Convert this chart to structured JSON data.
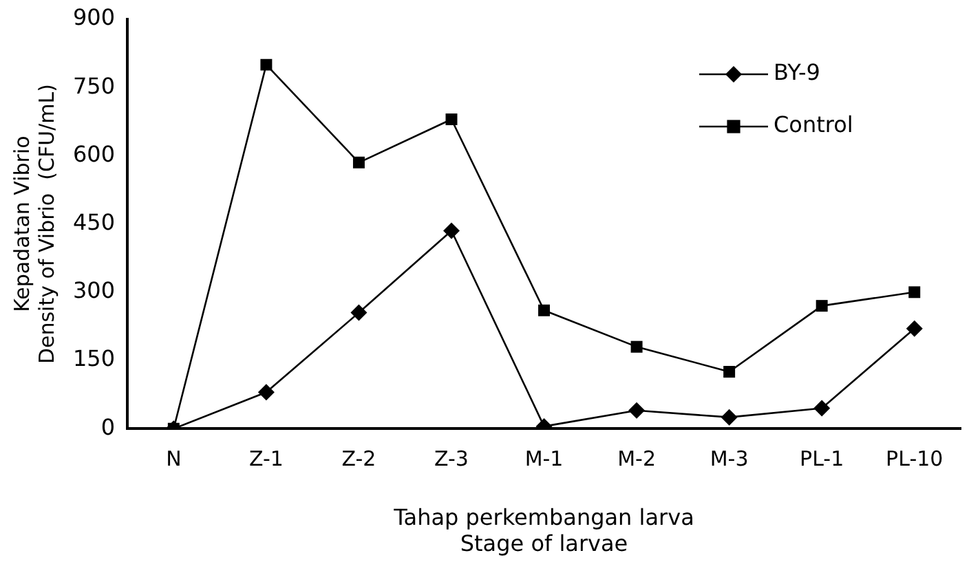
{
  "chart_data": {
    "type": "line",
    "xlabel": "Tahap perkembangan larva\nStage of larvae",
    "ylabel": "Kepadatan Vibrio\nDensity of Vibrio  (CFU/mL)",
    "categories": [
      "N",
      "Z-1",
      "Z-2",
      "Z-3",
      "M-1",
      "M-2",
      "M-3",
      "PL-1",
      "PL-10"
    ],
    "series": [
      {
        "name": "BY-9",
        "color": "#000000",
        "marker": "diamond",
        "values": [
          0,
          80,
          255,
          435,
          5,
          40,
          25,
          45,
          220
        ]
      },
      {
        "name": "Control",
        "color": "#000000",
        "marker": "square",
        "values": [
          0,
          800,
          585,
          680,
          260,
          180,
          125,
          270,
          300
        ]
      }
    ],
    "ylim": [
      0,
      900
    ],
    "yticks": [
      0,
      150,
      300,
      450,
      600,
      750,
      900
    ],
    "grid": false,
    "legend": "top right",
    "line_style": "solid"
  }
}
